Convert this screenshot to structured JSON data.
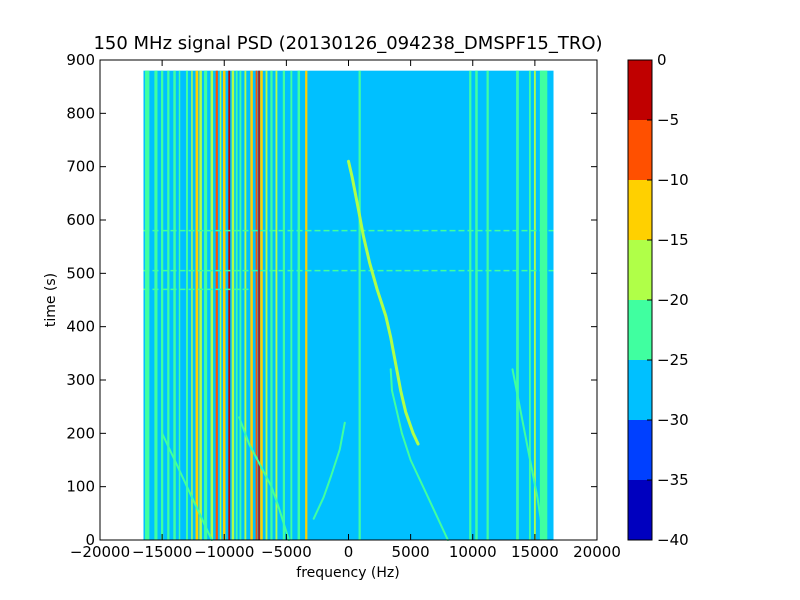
{
  "chart_data": {
    "type": "heatmap",
    "title": "150 MHz signal PSD (20130126_094238_DMSPF15_TRO)",
    "xlabel": "frequency (Hz)",
    "ylabel": "time (s)",
    "xlim": [
      -20000,
      20000
    ],
    "ylim": [
      0,
      900
    ],
    "xticks": [
      -20000,
      -15000,
      -10000,
      -5000,
      0,
      5000,
      10000,
      15000,
      20000
    ],
    "xtick_labels": [
      "−20000",
      "−15000",
      "−10000",
      "−5000",
      "0",
      "5000",
      "10000",
      "15000",
      "20000"
    ],
    "yticks": [
      0,
      100,
      200,
      300,
      400,
      500,
      600,
      700,
      800,
      900
    ],
    "ytick_labels": [
      "0",
      "100",
      "200",
      "300",
      "400",
      "500",
      "600",
      "700",
      "800",
      "900"
    ],
    "data_extent": {
      "x": [
        -16500,
        16500
      ],
      "y": [
        0,
        880
      ]
    },
    "colorbar": {
      "levels": [
        -40,
        -35,
        -30,
        -25,
        -20,
        -15,
        -10,
        -5,
        0
      ],
      "labels": [
        "−40",
        "−35",
        "−30",
        "−25",
        "−20",
        "−15",
        "−10",
        "−5",
        "0"
      ],
      "colors": [
        "#0000bf",
        "#0040ff",
        "#00c0ff",
        "#40ffa0",
        "#b0ff48",
        "#ffd000",
        "#ff5000",
        "#c00000"
      ]
    },
    "background_level_color": "#00c0ff",
    "vertical_lines": [
      {
        "x": -16200,
        "width": 350,
        "color": "#40ffa0"
      },
      {
        "x": -15500,
        "width": 250,
        "color": "#40ffa0"
      },
      {
        "x": -15000,
        "width": 180,
        "color": "#40ffa0"
      },
      {
        "x": -14500,
        "width": 180,
        "color": "#40ffa0"
      },
      {
        "x": -14000,
        "width": 200,
        "color": "#40ffa0"
      },
      {
        "x": -13600,
        "width": 120,
        "color": "#40ffa0"
      },
      {
        "x": -13000,
        "width": 160,
        "color": "#40ffa0"
      },
      {
        "x": -12600,
        "width": 120,
        "color": "#b0ff48"
      },
      {
        "x": -12200,
        "width": 220,
        "color": "#ffd000"
      },
      {
        "x": -11900,
        "width": 200,
        "color": "#b0ff48"
      },
      {
        "x": -11500,
        "width": 250,
        "color": "#40ffa0"
      },
      {
        "x": -11000,
        "width": 200,
        "color": "#b0ff48"
      },
      {
        "x": -10600,
        "width": 180,
        "color": "#ff5000"
      },
      {
        "x": -10300,
        "width": 120,
        "color": "#b0ff48"
      },
      {
        "x": -10000,
        "width": 200,
        "color": "#ffd000"
      },
      {
        "x": -9600,
        "width": 150,
        "color": "#c00000"
      },
      {
        "x": -9300,
        "width": 200,
        "color": "#b0ff48"
      },
      {
        "x": -9000,
        "width": 150,
        "color": "#40ffa0"
      },
      {
        "x": -8700,
        "width": 150,
        "color": "#40ffa0"
      },
      {
        "x": -8300,
        "width": 150,
        "color": "#b0ff48"
      },
      {
        "x": -7800,
        "width": 200,
        "color": "#ffd000"
      },
      {
        "x": -7400,
        "width": 150,
        "color": "#ff5000"
      },
      {
        "x": -7200,
        "width": 120,
        "color": "#c00000"
      },
      {
        "x": -7000,
        "width": 200,
        "color": "#ffd000"
      },
      {
        "x": -6600,
        "width": 150,
        "color": "#b0ff48"
      },
      {
        "x": -6200,
        "width": 180,
        "color": "#40ffa0"
      },
      {
        "x": -5800,
        "width": 150,
        "color": "#b0ff48"
      },
      {
        "x": -5200,
        "width": 180,
        "color": "#40ffa0"
      },
      {
        "x": -4600,
        "width": 150,
        "color": "#40ffa0"
      },
      {
        "x": -4000,
        "width": 200,
        "color": "#40ffa0"
      },
      {
        "x": -3400,
        "width": 180,
        "color": "#ffd000"
      },
      {
        "x": 900,
        "width": 180,
        "color": "#40ffa0"
      },
      {
        "x": 9800,
        "width": 180,
        "color": "#40ffa0"
      },
      {
        "x": 10300,
        "width": 200,
        "color": "#40ffa0"
      },
      {
        "x": 11200,
        "width": 180,
        "color": "#40ffa0"
      },
      {
        "x": 13600,
        "width": 220,
        "color": "#40ffa0"
      },
      {
        "x": 14600,
        "width": 150,
        "color": "#40ffa0"
      },
      {
        "x": 15000,
        "width": 150,
        "color": "#b0ff48"
      },
      {
        "x": 15700,
        "width": 600,
        "color": "#40ffa0"
      }
    ],
    "horizontal_lines": [
      {
        "y": 580,
        "x0": -16500,
        "x1": 16500,
        "color": "#40ffa0"
      },
      {
        "y": 505,
        "x0": -16500,
        "x1": 16500,
        "color": "#40ffa0"
      },
      {
        "y": 470,
        "x0": -16500,
        "x1": -8000,
        "color": "#40ffa0"
      }
    ],
    "traces": [
      {
        "color": "#b0ff48",
        "width": 3,
        "points": [
          [
            0,
            710
          ],
          [
            300,
            680
          ],
          [
            800,
            620
          ],
          [
            1200,
            570
          ],
          [
            1700,
            520
          ],
          [
            2300,
            470
          ],
          [
            3000,
            420
          ],
          [
            3400,
            380
          ],
          [
            3800,
            330
          ],
          [
            4200,
            280
          ],
          [
            4600,
            240
          ],
          [
            5200,
            200
          ],
          [
            5600,
            180
          ]
        ]
      },
      {
        "color": "#40ffa0",
        "width": 2,
        "points": [
          [
            3400,
            320
          ],
          [
            3500,
            280
          ],
          [
            3900,
            240
          ],
          [
            4300,
            200
          ],
          [
            5000,
            150
          ],
          [
            6000,
            100
          ],
          [
            7000,
            50
          ],
          [
            8000,
            0
          ]
        ]
      },
      {
        "color": "#40ffa0",
        "width": 2,
        "points": [
          [
            -300,
            220
          ],
          [
            -700,
            170
          ],
          [
            -1400,
            120
          ],
          [
            -2000,
            80
          ],
          [
            -2800,
            40
          ]
        ]
      },
      {
        "color": "#40ffa0",
        "width": 2,
        "points": [
          [
            -8800,
            230
          ],
          [
            -8000,
            180
          ],
          [
            -7100,
            140
          ],
          [
            -6200,
            100
          ],
          [
            -5600,
            60
          ],
          [
            -4800,
            0
          ]
        ]
      },
      {
        "color": "#40ffa0",
        "width": 2,
        "points": [
          [
            -15000,
            200
          ],
          [
            -14000,
            150
          ],
          [
            -13000,
            100
          ],
          [
            -12000,
            50
          ],
          [
            -11000,
            0
          ]
        ]
      },
      {
        "color": "#40ffa0",
        "width": 2,
        "points": [
          [
            13200,
            320
          ],
          [
            13700,
            260
          ],
          [
            14200,
            200
          ],
          [
            14700,
            140
          ],
          [
            15200,
            80
          ],
          [
            15600,
            20
          ]
        ]
      }
    ]
  }
}
